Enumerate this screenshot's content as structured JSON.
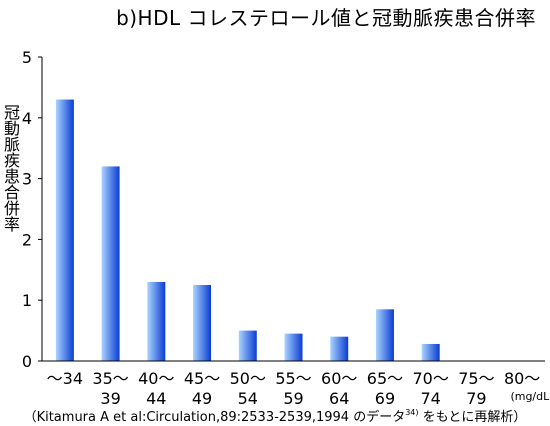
{
  "chart_data": {
    "type": "bar",
    "title": "b)HDL コレステロール値と冠動脈疾患合併率",
    "ylabel": "冠動脈疾患合併率",
    "xlabel": "",
    "unit_label": "(mg/dL)",
    "categories": [
      "～34",
      "35～39",
      "40～44",
      "45～49",
      "50～54",
      "55～59",
      "60～64",
      "65～69",
      "70～74",
      "75～79",
      "80～"
    ],
    "category_lines": [
      [
        "～34"
      ],
      [
        "35～",
        "39"
      ],
      [
        "40～",
        "44"
      ],
      [
        "45～",
        "49"
      ],
      [
        "50～",
        "54"
      ],
      [
        "55～",
        "59"
      ],
      [
        "60～",
        "64"
      ],
      [
        "65～",
        "69"
      ],
      [
        "70～",
        "74"
      ],
      [
        "75～",
        "79"
      ],
      [
        "80～"
      ]
    ],
    "values": [
      4.3,
      3.2,
      1.3,
      1.25,
      0.5,
      0.45,
      0.4,
      0.85,
      0.28,
      0,
      0
    ],
    "ylim": [
      0,
      5
    ],
    "yticks": [
      0,
      1,
      2,
      3,
      4,
      5
    ],
    "grid": false,
    "legend": "none",
    "bar_color_light": "#aad4ff",
    "bar_color_dark": "#0a3cd2"
  },
  "citation": {
    "prefix": "（Kitamura A et al:Circulation,89:2533-2539,1994 のデータ",
    "ref": "34)",
    "suffix": " をもとに再解析）"
  }
}
